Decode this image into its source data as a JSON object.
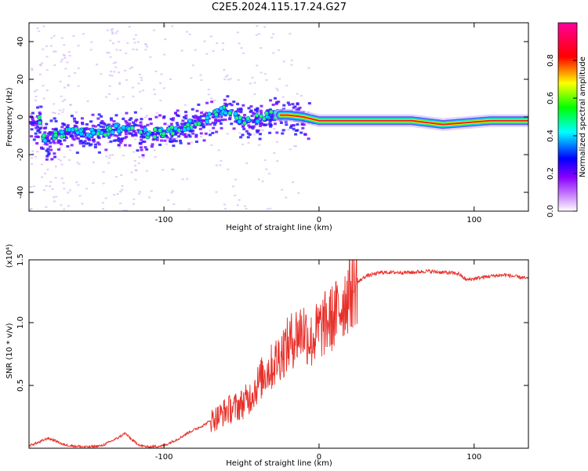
{
  "title": "C2E5.2024.115.17.24.G27",
  "chart_data": [
    {
      "type": "heatmap",
      "xlabel": "Height of straight line (km)",
      "ylabel": "Frequency (Hz)",
      "xlim": [
        -187,
        135
      ],
      "ylim": [
        -50,
        50
      ],
      "x_ticks": [
        -100,
        0,
        100
      ],
      "y_ticks": [
        -40,
        -20,
        0,
        20,
        40
      ],
      "colorbar": {
        "label": "Normalized spectral amplitude",
        "range": [
          0,
          1
        ],
        "ticks": [
          0.0,
          0.2,
          0.4,
          0.6,
          0.8
        ],
        "colormap": [
          "#ffffff",
          "#8800ff",
          "#0000ff",
          "#00ffff",
          "#00ff00",
          "#ffff00",
          "#ff0000",
          "#ff0099"
        ]
      },
      "ridge": [
        {
          "x": -180,
          "f": -12
        },
        {
          "x": -170,
          "f": -10
        },
        {
          "x": -160,
          "f": -8
        },
        {
          "x": -150,
          "f": -9
        },
        {
          "x": -140,
          "f": -8
        },
        {
          "x": -130,
          "f": -6
        },
        {
          "x": -120,
          "f": -7
        },
        {
          "x": -110,
          "f": -9
        },
        {
          "x": -100,
          "f": -8
        },
        {
          "x": -90,
          "f": -6
        },
        {
          "x": -80,
          "f": -3
        },
        {
          "x": -70,
          "f": 0
        },
        {
          "x": -60,
          "f": 4
        },
        {
          "x": -50,
          "f": -2
        },
        {
          "x": -40,
          "f": -1
        },
        {
          "x": -30,
          "f": 1
        },
        {
          "x": -20,
          "f": 1
        },
        {
          "x": -10,
          "f": 0
        },
        {
          "x": 0,
          "f": -2
        },
        {
          "x": 20,
          "f": -2
        },
        {
          "x": 40,
          "f": -2
        },
        {
          "x": 60,
          "f": -2
        },
        {
          "x": 80,
          "f": -4
        },
        {
          "x": 95,
          "f": -3
        },
        {
          "x": 110,
          "f": -2
        },
        {
          "x": 135,
          "f": -2
        }
      ]
    },
    {
      "type": "line",
      "xlabel": "Height of straight line (km)",
      "ylabel": "SNR (10 * v/v)",
      "y_scale_label": "(x10⁴)",
      "xlim": [
        -187,
        135
      ],
      "ylim": [
        0,
        1.5
      ],
      "x_ticks": [
        -100,
        0,
        100
      ],
      "y_ticks": [
        0.5,
        1.0,
        1.5
      ],
      "y_tick_labels": [
        "0.5",
        "1.0",
        "1.5"
      ],
      "color": "#e8302a",
      "series": [
        {
          "x": [
            -187,
            -180,
            -175,
            -170,
            -165,
            -160,
            -150,
            -140,
            -130,
            -125,
            -120,
            -115,
            -110,
            -100,
            -95,
            -90,
            -85,
            -80,
            -75,
            -70,
            -65,
            -60,
            -55,
            -50,
            -45,
            -40,
            -35,
            -30,
            -25,
            -20,
            -15,
            -10,
            -5,
            0,
            5,
            10,
            15,
            20,
            25,
            30,
            40,
            50,
            60,
            70,
            80,
            90,
            95,
            100,
            110,
            120,
            130,
            135
          ],
          "values": [
            0.02,
            0.05,
            0.08,
            0.06,
            0.03,
            0.02,
            0.01,
            0.02,
            0.08,
            0.12,
            0.06,
            0.02,
            0.01,
            0.02,
            0.05,
            0.08,
            0.12,
            0.15,
            0.18,
            0.22,
            0.25,
            0.3,
            0.32,
            0.35,
            0.4,
            0.5,
            0.6,
            0.65,
            0.75,
            0.82,
            0.9,
            0.95,
            0.85,
            0.95,
            1.0,
            1.05,
            1.15,
            1.25,
            1.32,
            1.37,
            1.4,
            1.4,
            1.4,
            1.41,
            1.4,
            1.39,
            1.34,
            1.35,
            1.37,
            1.38,
            1.36,
            1.35
          ]
        }
      ]
    }
  ]
}
